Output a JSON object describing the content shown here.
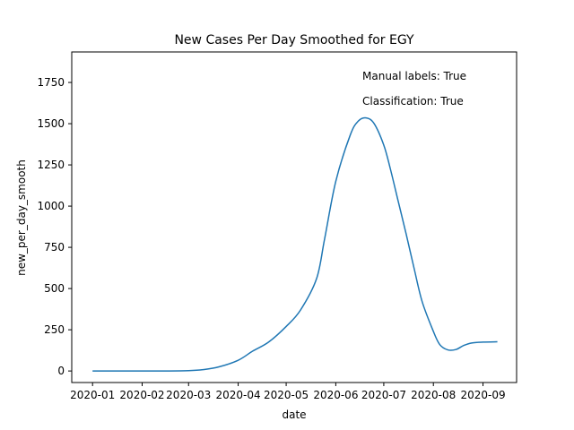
{
  "chart_data": {
    "type": "line",
    "title": "New Cases Per Day Smoothed for EGY",
    "xlabel": "date",
    "ylabel": "new_per_day_smooth",
    "xlim": [
      "2019-12-19",
      "2020-09-22"
    ],
    "ylim": [
      -70,
      1935
    ],
    "x_ticks": [
      "2020-01-01",
      "2020-02-01",
      "2020-03-01",
      "2020-04-01",
      "2020-05-01",
      "2020-06-01",
      "2020-07-01",
      "2020-08-01",
      "2020-09-01"
    ],
    "x_tick_labels": [
      "2020-01",
      "2020-02",
      "2020-03",
      "2020-04",
      "2020-05",
      "2020-06",
      "2020-07",
      "2020-08",
      "2020-09"
    ],
    "y_ticks": [
      0,
      250,
      500,
      750,
      1000,
      1250,
      1500,
      1750
    ],
    "y_tick_labels": [
      "0",
      "250",
      "500",
      "750",
      "1000",
      "1250",
      "1500",
      "1750"
    ],
    "grid": false,
    "legend": false,
    "line_color": "#1f77b4",
    "annotations": [
      "Manual labels: True",
      "Classification: True"
    ],
    "series": [
      {
        "x": [
          "2020-01-01",
          "2020-01-15",
          "2020-02-01",
          "2020-02-15",
          "2020-03-01",
          "2020-03-10",
          "2020-03-20",
          "2020-04-01",
          "2020-04-10",
          "2020-04-20",
          "2020-05-01",
          "2020-05-10",
          "2020-05-20",
          "2020-05-25",
          "2020-06-01",
          "2020-06-10",
          "2020-06-15",
          "2020-06-20",
          "2020-06-25",
          "2020-07-01",
          "2020-07-05",
          "2020-07-10",
          "2020-07-15",
          "2020-07-20",
          "2020-07-25",
          "2020-08-01",
          "2020-08-05",
          "2020-08-10",
          "2020-08-15",
          "2020-08-20",
          "2020-08-25",
          "2020-09-01",
          "2020-09-10"
        ],
        "y": [
          0,
          0,
          0,
          0,
          2,
          8,
          25,
          65,
          120,
          175,
          270,
          370,
          560,
          800,
          1150,
          1430,
          1515,
          1535,
          1500,
          1370,
          1230,
          1030,
          830,
          620,
          420,
          240,
          160,
          128,
          130,
          155,
          170,
          175,
          177
        ]
      }
    ]
  }
}
